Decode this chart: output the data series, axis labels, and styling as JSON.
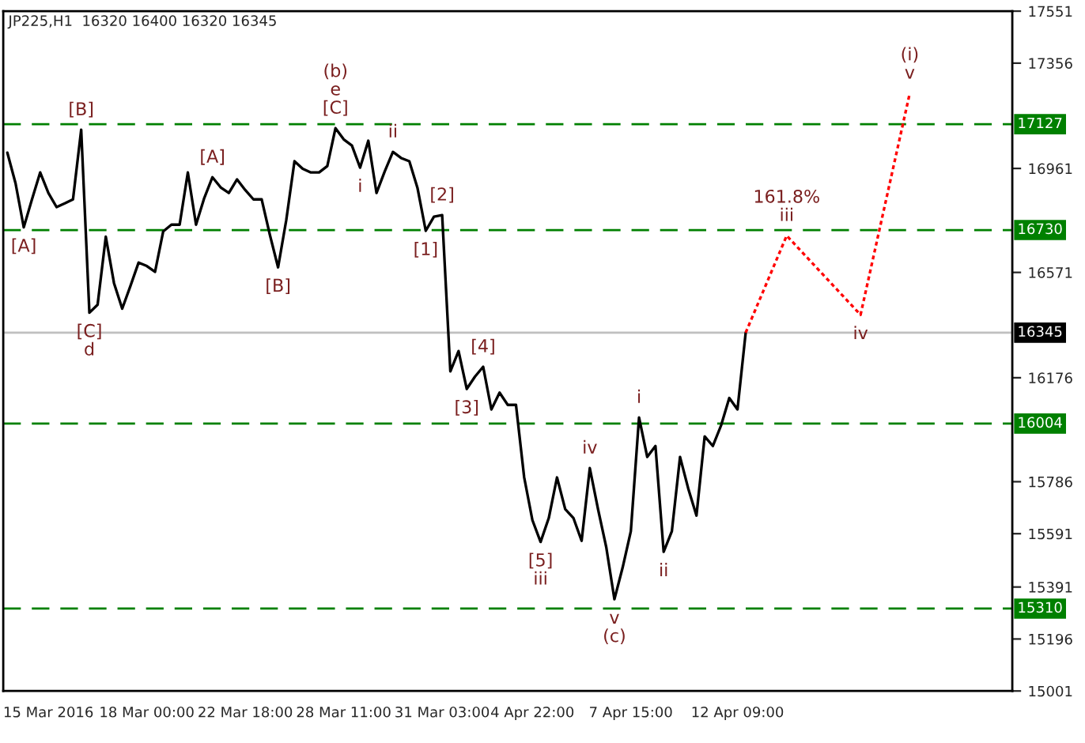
{
  "chart_data": {
    "type": "line",
    "title": "JP225,H1  16320 16400 16320 16345",
    "categories": [
      null,
      null,
      null,
      null,
      null,
      "15 Mar 2016",
      null,
      null,
      null,
      null,
      null,
      null,
      null,
      null,
      null,
      null,
      null,
      "18 Mar 00:00",
      null,
      null,
      null,
      null,
      null,
      null,
      null,
      null,
      null,
      null,
      null,
      "22 Mar 18:00",
      null,
      null,
      null,
      null,
      null,
      null,
      null,
      null,
      null,
      null,
      null,
      "28 Mar 11:00",
      null,
      null,
      null,
      null,
      null,
      null,
      null,
      null,
      null,
      null,
      null,
      "31 Mar 03:00",
      null,
      null,
      null,
      null,
      null,
      null,
      null,
      null,
      null,
      null,
      "4 Apr 22:00",
      null,
      null,
      null,
      null,
      null,
      null,
      null,
      null,
      null,
      null,
      null,
      "7 Apr 15:00",
      null,
      null,
      null,
      null,
      null,
      null,
      null,
      null,
      null,
      null,
      null,
      null,
      "12 Apr 09:00",
      null,
      null,
      null,
      null,
      null,
      null,
      null,
      null,
      null,
      null,
      null,
      null,
      null,
      null,
      null,
      null,
      null,
      null,
      null,
      null,
      null,
      null,
      null,
      null,
      null,
      null,
      null,
      null,
      null,
      null,
      null,
      null,
      null
    ],
    "series": [
      {
        "color": "#000000",
        "values": [
          17020,
          16905,
          16740,
          16845,
          16946,
          16869,
          16816,
          16830,
          16845,
          17106,
          16420,
          16450,
          16705,
          16531,
          16435,
          16520,
          16608,
          16595,
          16573,
          16725,
          16750,
          16750,
          16946,
          16750,
          16850,
          16928,
          16890,
          16869,
          16920,
          16880,
          16845,
          16845,
          16712,
          16590,
          16768,
          16988,
          16960,
          16946,
          16946,
          16970,
          17112,
          17070,
          17047,
          16964,
          17065,
          16869,
          16950,
          17023,
          17000,
          16988,
          16887,
          16727,
          16780,
          16786,
          16200,
          16276,
          16134,
          16180,
          16217,
          16057,
          16120,
          16074,
          16074,
          15802,
          15642,
          15560,
          15650,
          15802,
          15683,
          15650,
          15564,
          15837,
          15683,
          15541,
          15345,
          15464,
          15600,
          16027,
          15879,
          15920,
          15523,
          15600,
          15879,
          15760,
          15659,
          15956,
          15920,
          15997,
          16100,
          16057,
          16345,
          null,
          null,
          null,
          null,
          null,
          null,
          null,
          null,
          null,
          null,
          null,
          null,
          null,
          null,
          null,
          null,
          null,
          null,
          null,
          null,
          null,
          null,
          null,
          null,
          null,
          null,
          null,
          null,
          null,
          null,
          null,
          null
        ]
      },
      {
        "color": "#ff0000",
        "line_style": "dotted",
        "values": [
          null,
          null,
          null,
          null,
          null,
          null,
          null,
          null,
          null,
          null,
          null,
          null,
          null,
          null,
          null,
          null,
          null,
          null,
          null,
          null,
          null,
          null,
          null,
          null,
          null,
          null,
          null,
          null,
          null,
          null,
          null,
          null,
          null,
          null,
          null,
          null,
          null,
          null,
          null,
          null,
          null,
          null,
          null,
          null,
          null,
          null,
          null,
          null,
          null,
          null,
          null,
          null,
          null,
          null,
          null,
          null,
          null,
          null,
          null,
          null,
          null,
          null,
          null,
          null,
          null,
          null,
          null,
          null,
          null,
          null,
          null,
          null,
          null,
          null,
          null,
          null,
          null,
          null,
          null,
          null,
          null,
          null,
          null,
          null,
          null,
          null,
          null,
          null,
          null,
          null,
          16345,
          null,
          null,
          null,
          null,
          16709,
          null,
          null,
          null,
          null,
          null,
          null,
          null,
          null,
          16412,
          null,
          null,
          null,
          null,
          null,
          17243,
          null,
          null,
          null,
          null,
          null,
          null,
          null,
          null,
          null,
          null,
          null,
          null
        ]
      }
    ],
    "ylim": [
      15001,
      17551
    ],
    "yticks": [
      15001,
      15196,
      15391,
      15591,
      15786,
      16176,
      16571,
      16961,
      17356,
      17551
    ],
    "ref_lines": [
      {
        "axis": "y",
        "value": 17127,
        "label": "17127",
        "color": "#008000",
        "line_style": "dashed"
      },
      {
        "axis": "y",
        "value": 16730,
        "label": "16730",
        "color": "#008000",
        "line_style": "dashed"
      },
      {
        "axis": "y",
        "value": 16004,
        "label": "16004",
        "color": "#008000",
        "line_style": "dashed"
      },
      {
        "axis": "y",
        "value": 15310,
        "label": "15310",
        "color": "#008000",
        "line_style": "dashed"
      },
      {
        "axis": "y",
        "value": 16345,
        "label": "16345",
        "color": "#c0c0c0",
        "line_style": "solid"
      }
    ],
    "annotations": [
      {
        "text": "[A]",
        "y": 16740
      },
      {
        "text": "[B]",
        "y": 17106
      },
      {
        "text": "[C]\nd",
        "y": 16420
      },
      {
        "text": "[A]",
        "y": 16928
      },
      {
        "text": "[B]",
        "y": 16590
      },
      {
        "text": "(b)\ne\n[C]",
        "y": 17112
      },
      {
        "text": "i",
        "y": 16964
      },
      {
        "text": "ii",
        "y": 17023
      },
      {
        "text": "[2]",
        "y": 16786
      },
      {
        "text": "[1]",
        "y": 16727
      },
      {
        "text": "[4]",
        "y": 16217
      },
      {
        "text": "[3]",
        "y": 16134
      },
      {
        "text": "[5]\niii",
        "y": 15560
      },
      {
        "text": "iv",
        "y": 15837
      },
      {
        "text": "v\n(c)",
        "y": 15345
      },
      {
        "text": "i",
        "y": 16027
      },
      {
        "text": "ii",
        "y": 15523
      },
      {
        "text": "161.8%\niii",
        "y": 16709
      },
      {
        "text": "iv",
        "y": 16412
      },
      {
        "text": "(i)\nv",
        "y": 17243
      }
    ],
    "grid": false,
    "legend": false,
    "marker": "none",
    "line_style": "solid"
  }
}
